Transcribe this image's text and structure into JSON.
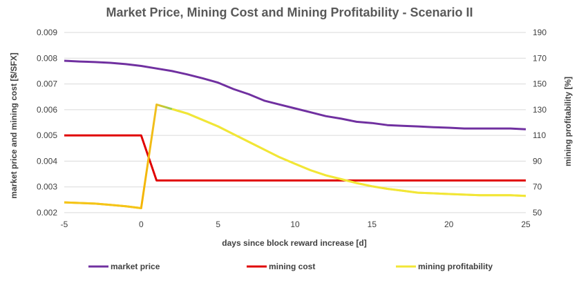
{
  "chart_data": {
    "type": "line",
    "title": "Market Price, Mining Cost and Mining Profitability - Scenario II",
    "xlabel": "days since block reward increase [d]",
    "ylabel": "market price and mining cost [$/SFX]",
    "y2label": "mining profitability [%]",
    "xlim": [
      -5,
      25
    ],
    "ylim": [
      0.002,
      0.009
    ],
    "y2lim": [
      50,
      190
    ],
    "x_ticks": [
      "-5",
      "0",
      "5",
      "10",
      "15",
      "20",
      "25"
    ],
    "x_tick_values": [
      -5,
      0,
      5,
      10,
      15,
      20,
      25
    ],
    "y_ticks": [
      "0.002",
      "0.003",
      "0.004",
      "0.005",
      "0.006",
      "0.007",
      "0.008",
      "0.009"
    ],
    "y_tick_values": [
      0.002,
      0.003,
      0.004,
      0.005,
      0.006,
      0.007,
      0.008,
      0.009
    ],
    "y2_ticks": [
      "50",
      "70",
      "90",
      "110",
      "130",
      "150",
      "170",
      "190"
    ],
    "y2_tick_values": [
      50,
      70,
      90,
      110,
      130,
      150,
      170,
      190
    ],
    "grid": true,
    "legend_position": "bottom",
    "series": [
      {
        "name": "market price",
        "axis": "left",
        "color": "#7030a0",
        "x": [
          -5,
          -4,
          -3,
          -2,
          -1,
          0,
          1,
          2,
          3,
          4,
          5,
          6,
          7,
          8,
          9,
          10,
          11,
          12,
          13,
          14,
          15,
          16,
          17,
          18,
          19,
          20,
          21,
          22,
          23,
          24,
          25
        ],
        "y": [
          0.0079,
          0.00787,
          0.00785,
          0.00782,
          0.00777,
          0.0077,
          0.0076,
          0.0075,
          0.00737,
          0.00722,
          0.00705,
          0.0068,
          0.0066,
          0.00635,
          0.0062,
          0.00605,
          0.0059,
          0.00575,
          0.00565,
          0.00553,
          0.00548,
          0.0054,
          0.00537,
          0.00535,
          0.00532,
          0.0053,
          0.00527,
          0.00527,
          0.00527,
          0.00527,
          0.00524
        ]
      },
      {
        "name": "mining cost",
        "axis": "left",
        "color": "#e00000",
        "x": [
          -5,
          0,
          1,
          25
        ],
        "y": [
          0.005,
          0.005,
          0.00325,
          0.00325
        ]
      },
      {
        "name": "mining profitability",
        "axis": "right",
        "color": "#f2e636",
        "x": [
          -5,
          -4,
          -3,
          -2,
          -1,
          0,
          1,
          2,
          3,
          4,
          5,
          6,
          7,
          8,
          9,
          10,
          11,
          12,
          13,
          14,
          15,
          16,
          17,
          18,
          19,
          20,
          21,
          22,
          23,
          24,
          25
        ],
        "y": [
          58,
          57.5,
          57,
          56,
          55,
          53.5,
          134,
          130.5,
          127,
          122,
          117,
          111,
          105,
          99,
          93,
          88,
          83,
          79,
          76,
          73,
          70.5,
          68.5,
          67,
          65.5,
          65,
          64.5,
          64,
          63.5,
          63.5,
          63.5,
          63
        ]
      }
    ]
  }
}
